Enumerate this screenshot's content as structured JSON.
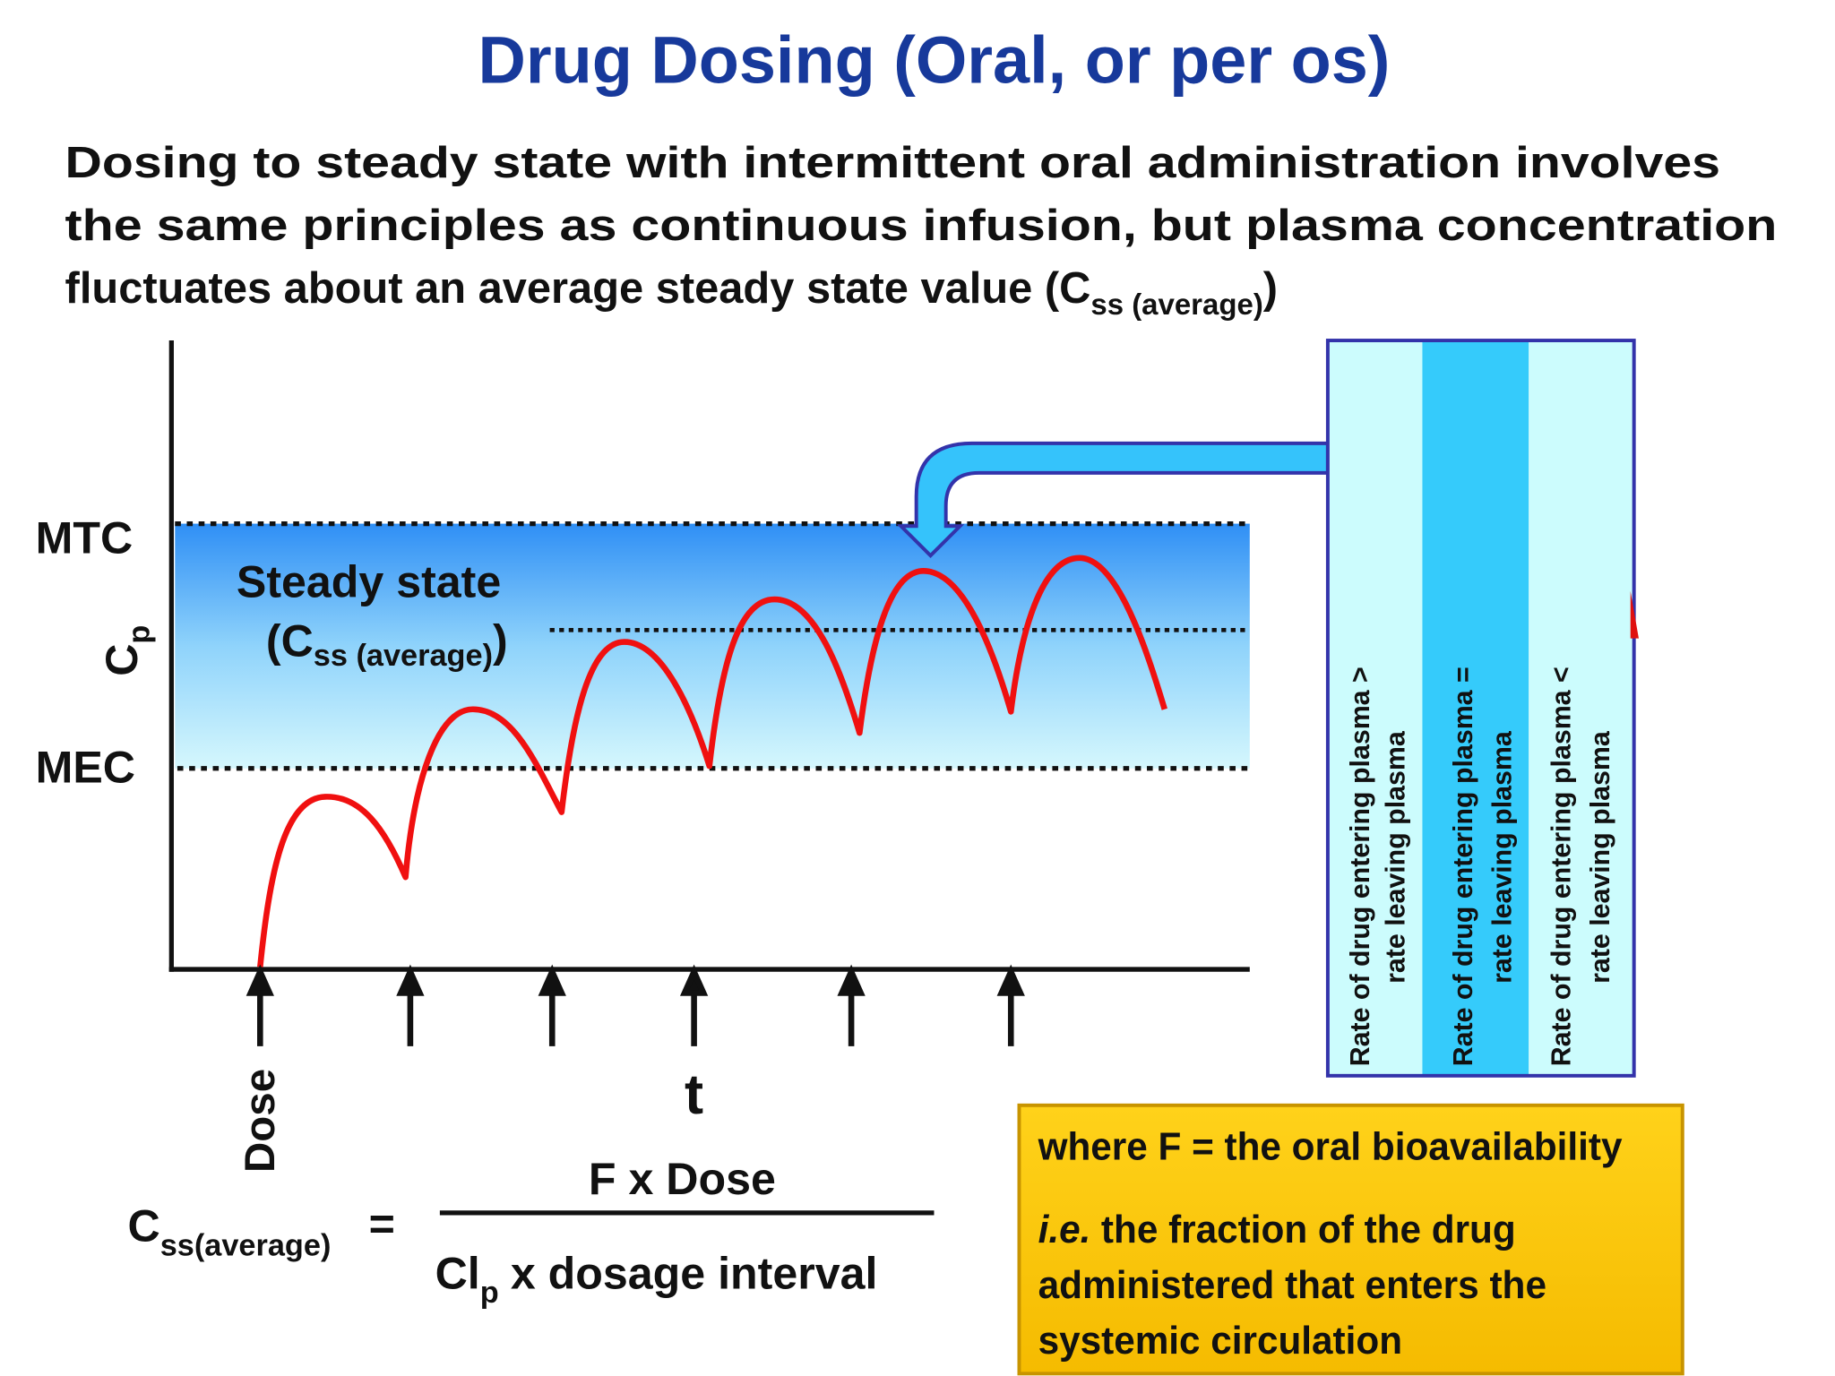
{
  "title": "Drug Dosing (Oral, or per os)",
  "intro": {
    "lines": [
      "Dosing to steady state with intermittent oral administration involves",
      "the same principles as continuous infusion, but plasma concentration",
      "fluctuates about an average steady state value (C"
    ],
    "subscript": "ss (average)",
    "close": ")"
  },
  "graph": {
    "y_axis_label": {
      "text": "C",
      "subscript": "p"
    },
    "mtc": "MTC",
    "mec": "MEC",
    "steady_state": {
      "label": "Steady state",
      "prefix": "(C",
      "subscript": "ss (average)",
      "close": ")"
    },
    "dose_label": "Dose",
    "x_axis_label": "t"
  },
  "panel": {
    "columns": [
      {
        "lines": [
          "Rate of drug entering plasma >",
          "rate leaving plasma"
        ]
      },
      {
        "lines": [
          "Rate of drug entering plasma =",
          "rate leaving plasma"
        ]
      },
      {
        "lines": [
          "Rate of drug entering plasma <",
          "rate leaving plasma"
        ]
      }
    ]
  },
  "formula": {
    "lhs": "C",
    "lhs_subscript": "ss(average)",
    "equals": "=",
    "numerator": "F x Dose",
    "denominator": "Cl",
    "denominator_subscript": "p",
    "denominator_rest": "x dosage interval"
  },
  "note": {
    "line1": "where F = the oral bioavailability",
    "italic": "i.e.",
    "line2_rest": "the fraction of the drug",
    "line3": "administered that enters the",
    "line4": "systemic circulation"
  }
}
